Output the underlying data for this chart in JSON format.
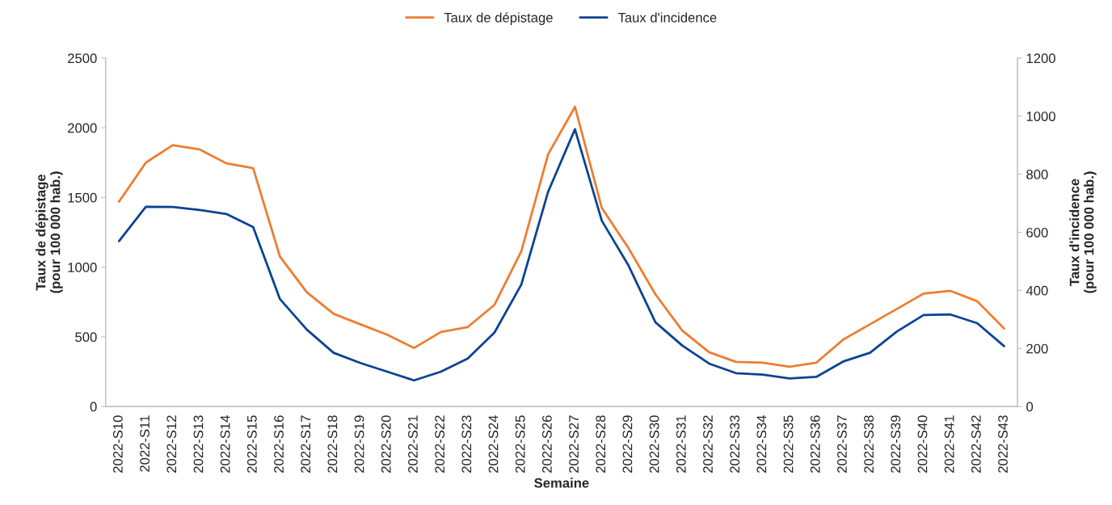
{
  "chart_data": {
    "type": "line",
    "xlabel": "Semaine",
    "ylabel": "Taux de dépistage\n(pour 100 000 hab.)",
    "y2label": "Taux d'incidence\n(pour 100 000 hab.)",
    "categories": [
      "2022-S10",
      "2022-S11",
      "2022-S12",
      "2022-S13",
      "2022-S14",
      "2022-S15",
      "2022-S16",
      "2022-S17",
      "2022-S18",
      "2022-S19",
      "2022-S20",
      "2022-S21",
      "2022-S22",
      "2022-S23",
      "2022-S24",
      "2022-S25",
      "2022-S26",
      "2022-S27",
      "2022-S28",
      "2022-S29",
      "2022-S30",
      "2022-S31",
      "2022-S32",
      "2022-S33",
      "2022-S34",
      "2022-S35",
      "2022-S36",
      "2022-S37",
      "2022-S38",
      "2022-S39",
      "2022-S40",
      "2022-S41",
      "2022-S42",
      "2022-S43"
    ],
    "series": [
      {
        "name": "Taux de dépistage",
        "color": "#ed7d31",
        "values": [
          1470,
          1750,
          1875,
          1845,
          1745,
          1710,
          1075,
          820,
          665,
          590,
          515,
          420,
          535,
          570,
          730,
          1115,
          1810,
          2150,
          1425,
          1135,
          805,
          545,
          390,
          320,
          315,
          285,
          315,
          480,
          590,
          700,
          810,
          830,
          755,
          560
        ]
      },
      {
        "name": "Taux d'incidence",
        "color": "#0b4393",
        "axis": "y2",
        "values": [
          570,
          688,
          687,
          677,
          663,
          618,
          370,
          265,
          185,
          150,
          120,
          90,
          120,
          165,
          255,
          420,
          740,
          955,
          640,
          485,
          290,
          210,
          148,
          115,
          110,
          97,
          102,
          155,
          185,
          258,
          315,
          317,
          287,
          208
        ]
      }
    ],
    "ylim": [
      0,
      2500
    ],
    "yticks": [
      0,
      500,
      1000,
      1500,
      2000,
      2500
    ],
    "y2lim": [
      0,
      1200
    ],
    "y2ticks": [
      0,
      200,
      400,
      600,
      800,
      1000,
      1200
    ],
    "grid": false,
    "legend": "top",
    "marker": "none",
    "line_style": "solid"
  }
}
